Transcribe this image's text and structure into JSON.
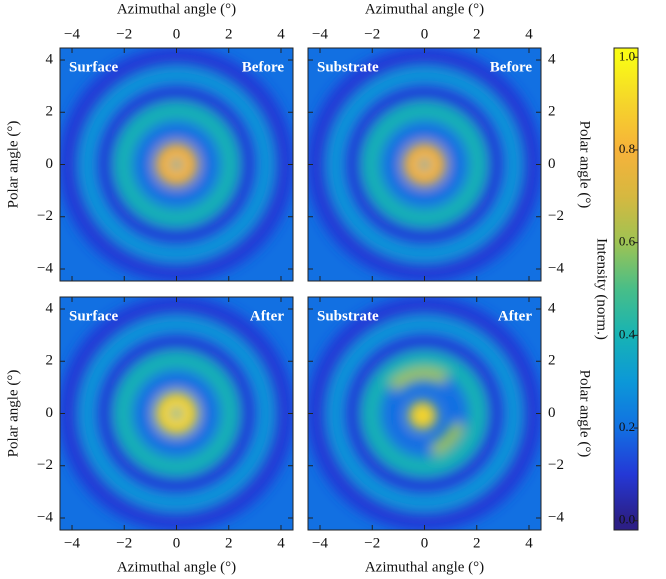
{
  "chart_data": [
    {
      "type": "heatmap",
      "corner_left": "Surface",
      "corner_right": "Before",
      "xlabel": "Azimuthal angle (°)",
      "ylabel": "Polar angle (°)",
      "xaxis": "top",
      "yaxis": "left",
      "xlim": [
        -4.46,
        4.46
      ],
      "ylim": [
        -4.46,
        4.46
      ],
      "xticks": [
        {
          "value": -4,
          "label": "−4"
        },
        {
          "value": -2,
          "label": "−2"
        },
        0,
        2,
        4
      ],
      "yticks": [
        {
          "value": -4,
          "label": "−4"
        },
        {
          "value": -2,
          "label": "−2"
        },
        0,
        2,
        4
      ]
    },
    {
      "type": "heatmap",
      "corner_left": "Substrate",
      "corner_right": "Before",
      "xlabel": "Azimuthal angle (°)",
      "ylabel": "Polar angle (°)",
      "xaxis": "top",
      "yaxis": "right",
      "xlim": [
        -4.46,
        4.46
      ],
      "ylim": [
        -4.46,
        4.46
      ],
      "xticks": [
        {
          "value": -4,
          "label": "−4"
        },
        {
          "value": -2,
          "label": "−2"
        },
        0,
        2,
        4
      ],
      "yticks": [
        {
          "value": -4,
          "label": "−4"
        },
        {
          "value": -2,
          "label": "−2"
        },
        0,
        2,
        4
      ]
    },
    {
      "type": "heatmap",
      "corner_left": "Surface",
      "corner_right": "After",
      "xlabel": "Azimuthal angle (°)",
      "ylabel": "Polar angle (°)",
      "xaxis": "bottom",
      "yaxis": "left",
      "xlim": [
        -4.46,
        4.46
      ],
      "ylim": [
        -4.46,
        4.46
      ],
      "xticks": [
        {
          "value": -4,
          "label": "−4"
        },
        {
          "value": -2,
          "label": "−2"
        },
        0,
        2,
        4
      ],
      "yticks": [
        {
          "value": -4,
          "label": "−4"
        },
        {
          "value": -2,
          "label": "−2"
        },
        0,
        2,
        4
      ]
    },
    {
      "type": "heatmap",
      "corner_left": "Substrate",
      "corner_right": "After",
      "xlabel": "Azimuthal angle (°)",
      "ylabel": "Polar angle (°)",
      "xaxis": "bottom",
      "yaxis": "right",
      "xlim": [
        -4.46,
        4.46
      ],
      "ylim": [
        -4.46,
        4.46
      ],
      "xticks": [
        {
          "value": -4,
          "label": "−4"
        },
        {
          "value": -2,
          "label": "−2"
        },
        0,
        2,
        4
      ],
      "yticks": [
        {
          "value": -4,
          "label": "−4"
        },
        {
          "value": -2,
          "label": "−2"
        },
        0,
        2,
        4
      ]
    },
    {
      "type": "colorbar",
      "label": "Intensity (norm.)",
      "lim": [
        -0.02,
        1.02
      ],
      "ticks": [
        {
          "value": 0,
          "label": "0.0"
        },
        0.2,
        0.4,
        0.6,
        0.8,
        {
          "value": 1,
          "label": "1.0"
        }
      ],
      "colormap": [
        "#2c1f86",
        "#2438d6",
        "#1270e2",
        "#0c98d8",
        "#17b3b4",
        "#48be88",
        "#9ec353",
        "#d6b840",
        "#f7b23a",
        "#f5d42b",
        "#f9fb15"
      ]
    }
  ]
}
